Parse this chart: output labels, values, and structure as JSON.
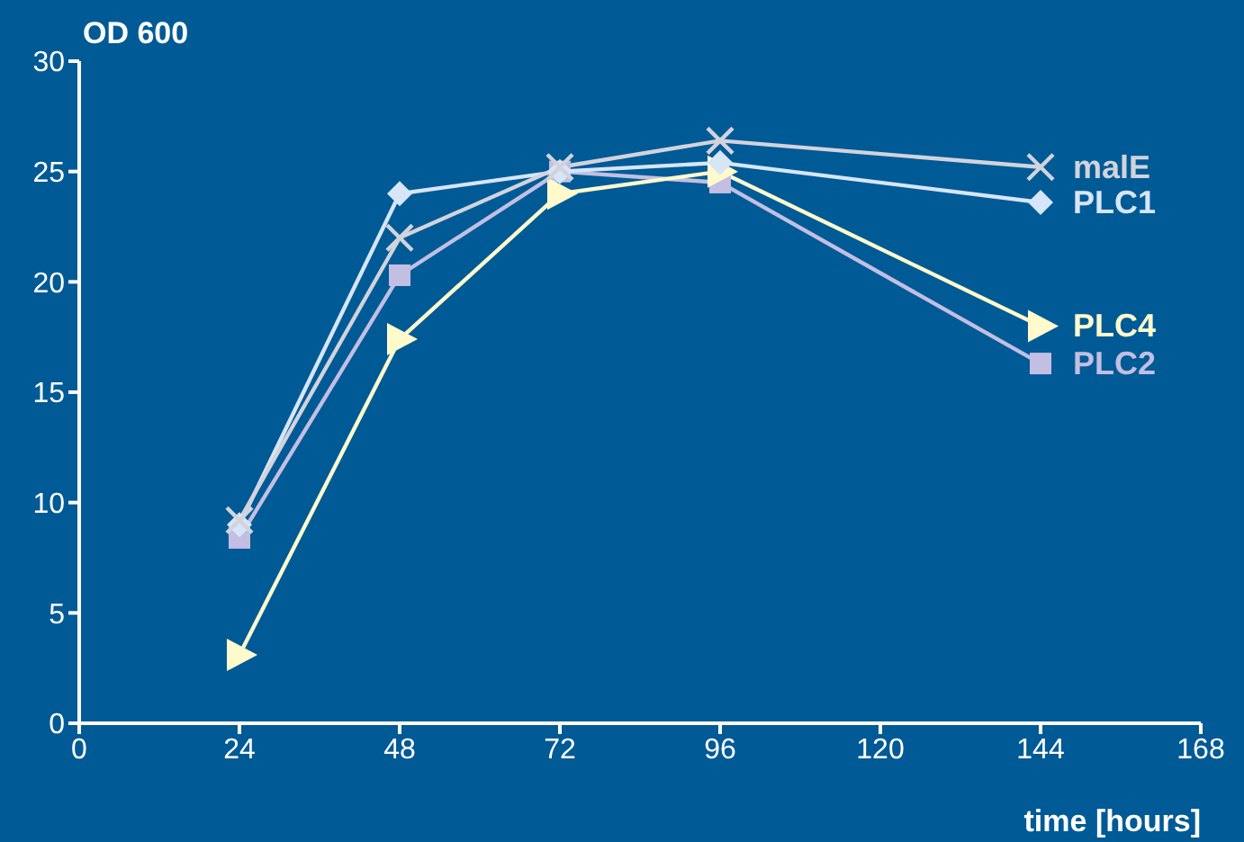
{
  "chart_data": {
    "type": "line",
    "xlabel": "time [hours]",
    "ylabel": "OD 600",
    "x": [
      24,
      48,
      72,
      96,
      144
    ],
    "xlim": [
      0,
      168
    ],
    "xticks": [
      0,
      24,
      48,
      72,
      96,
      120,
      144,
      168
    ],
    "ylim": [
      0,
      30
    ],
    "yticks": [
      0,
      5,
      10,
      15,
      20,
      25,
      30
    ],
    "grid": false,
    "legend": false,
    "line_style": "solid",
    "series": [
      {
        "name": "malE",
        "color": "#d2d3dc",
        "marker": "cross",
        "values": [
          9.2,
          22.0,
          25.2,
          26.4,
          25.2
        ]
      },
      {
        "name": "PLC1",
        "color": "#d6e6f8",
        "marker": "diamond",
        "values": [
          9.0,
          24.0,
          25.0,
          25.4,
          23.6
        ]
      },
      {
        "name": "PLC4",
        "color": "#fffacc",
        "marker": "triangle",
        "values": [
          3.1,
          17.4,
          24.0,
          25.0,
          18.0
        ]
      },
      {
        "name": "PLC2",
        "color": "#c2bfe2",
        "marker": "square",
        "values": [
          8.4,
          20.3,
          25.0,
          24.5,
          16.3
        ]
      }
    ]
  }
}
